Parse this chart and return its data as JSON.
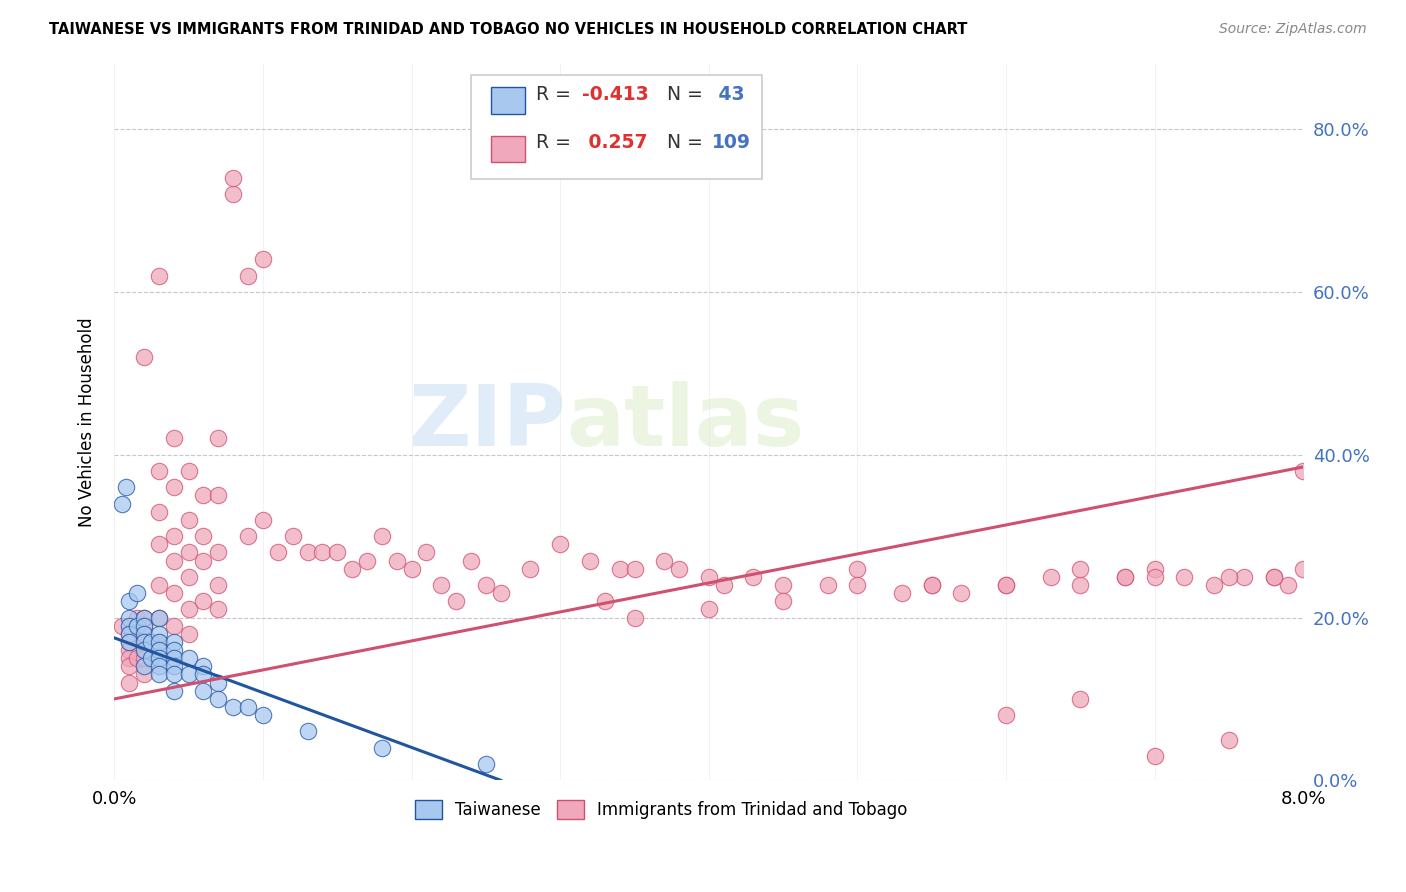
{
  "title": "TAIWANESE VS IMMIGRANTS FROM TRINIDAD AND TOBAGO NO VEHICLES IN HOUSEHOLD CORRELATION CHART",
  "source": "Source: ZipAtlas.com",
  "ylabel": "No Vehicles in Household",
  "xlim": [
    0.0,
    0.08
  ],
  "ylim": [
    0.0,
    0.88
  ],
  "xticks": [
    0.0,
    0.01,
    0.02,
    0.03,
    0.04,
    0.05,
    0.06,
    0.07,
    0.08
  ],
  "xtick_labels_show": [
    "0.0%",
    "",
    "",
    "",
    "",
    "",
    "",
    "",
    "8.0%"
  ],
  "yticks": [
    0.0,
    0.2,
    0.4,
    0.6,
    0.8
  ],
  "ytick_labels": [
    "0.0%",
    "20.0%",
    "40.0%",
    "60.0%",
    "80.0%"
  ],
  "R_taiwanese": -0.413,
  "N_taiwanese": 43,
  "R_tt": 0.257,
  "N_tt": 109,
  "color_taiwanese": "#a8c8f0",
  "color_tt": "#f0a8bc",
  "color_line_taiwanese": "#2255a0",
  "color_line_tt": "#d05070",
  "watermark_zip": "ZIP",
  "watermark_atlas": "atlas",
  "background_color": "#ffffff",
  "grid_color": "#c8c8c8",
  "tw_line_x0": 0.0,
  "tw_line_y0": 0.175,
  "tw_line_x1": 0.026,
  "tw_line_y1": 0.0,
  "tt_line_x0": 0.0,
  "tt_line_y0": 0.1,
  "tt_line_x1": 0.08,
  "tt_line_y1": 0.385,
  "taiwanese_x": [
    0.0005,
    0.0008,
    0.001,
    0.001,
    0.001,
    0.001,
    0.001,
    0.0015,
    0.0015,
    0.002,
    0.002,
    0.002,
    0.002,
    0.002,
    0.002,
    0.0025,
    0.0025,
    0.003,
    0.003,
    0.003,
    0.003,
    0.003,
    0.003,
    0.003,
    0.004,
    0.004,
    0.004,
    0.004,
    0.004,
    0.004,
    0.005,
    0.005,
    0.006,
    0.006,
    0.006,
    0.007,
    0.007,
    0.008,
    0.009,
    0.01,
    0.013,
    0.018,
    0.025
  ],
  "taiwanese_y": [
    0.34,
    0.36,
    0.2,
    0.19,
    0.18,
    0.17,
    0.22,
    0.23,
    0.19,
    0.2,
    0.19,
    0.18,
    0.17,
    0.16,
    0.14,
    0.17,
    0.15,
    0.2,
    0.18,
    0.17,
    0.16,
    0.15,
    0.14,
    0.13,
    0.17,
    0.16,
    0.15,
    0.14,
    0.13,
    0.11,
    0.15,
    0.13,
    0.14,
    0.13,
    0.11,
    0.12,
    0.1,
    0.09,
    0.09,
    0.08,
    0.06,
    0.04,
    0.02
  ],
  "tt_x": [
    0.0005,
    0.001,
    0.001,
    0.001,
    0.001,
    0.001,
    0.001,
    0.0015,
    0.0015,
    0.002,
    0.002,
    0.002,
    0.002,
    0.002,
    0.002,
    0.003,
    0.003,
    0.003,
    0.003,
    0.003,
    0.003,
    0.003,
    0.004,
    0.004,
    0.004,
    0.004,
    0.004,
    0.004,
    0.005,
    0.005,
    0.005,
    0.005,
    0.005,
    0.005,
    0.006,
    0.006,
    0.006,
    0.006,
    0.007,
    0.007,
    0.007,
    0.007,
    0.007,
    0.008,
    0.008,
    0.009,
    0.009,
    0.01,
    0.01,
    0.011,
    0.012,
    0.013,
    0.014,
    0.015,
    0.016,
    0.017,
    0.018,
    0.019,
    0.02,
    0.021,
    0.022,
    0.023,
    0.024,
    0.025,
    0.026,
    0.028,
    0.03,
    0.032,
    0.033,
    0.034,
    0.035,
    0.037,
    0.038,
    0.04,
    0.041,
    0.043,
    0.045,
    0.048,
    0.05,
    0.053,
    0.055,
    0.057,
    0.06,
    0.063,
    0.065,
    0.068,
    0.07,
    0.072,
    0.074,
    0.076,
    0.078,
    0.079,
    0.08,
    0.035,
    0.04,
    0.045,
    0.05,
    0.055,
    0.06,
    0.065,
    0.068,
    0.07,
    0.075,
    0.078,
    0.08,
    0.06,
    0.065,
    0.07,
    0.075
  ],
  "tt_y": [
    0.19,
    0.18,
    0.17,
    0.16,
    0.15,
    0.14,
    0.12,
    0.2,
    0.15,
    0.52,
    0.2,
    0.19,
    0.17,
    0.15,
    0.13,
    0.62,
    0.38,
    0.33,
    0.29,
    0.24,
    0.2,
    0.17,
    0.42,
    0.36,
    0.3,
    0.27,
    0.23,
    0.19,
    0.38,
    0.32,
    0.28,
    0.25,
    0.21,
    0.18,
    0.35,
    0.3,
    0.27,
    0.22,
    0.42,
    0.35,
    0.28,
    0.24,
    0.21,
    0.72,
    0.74,
    0.62,
    0.3,
    0.64,
    0.32,
    0.28,
    0.3,
    0.28,
    0.28,
    0.28,
    0.26,
    0.27,
    0.3,
    0.27,
    0.26,
    0.28,
    0.24,
    0.22,
    0.27,
    0.24,
    0.23,
    0.26,
    0.29,
    0.27,
    0.22,
    0.26,
    0.26,
    0.27,
    0.26,
    0.25,
    0.24,
    0.25,
    0.24,
    0.24,
    0.26,
    0.23,
    0.24,
    0.23,
    0.24,
    0.25,
    0.24,
    0.25,
    0.26,
    0.25,
    0.24,
    0.25,
    0.25,
    0.24,
    0.38,
    0.2,
    0.21,
    0.22,
    0.24,
    0.24,
    0.24,
    0.26,
    0.25,
    0.25,
    0.25,
    0.25,
    0.26,
    0.08,
    0.1,
    0.03,
    0.05
  ]
}
